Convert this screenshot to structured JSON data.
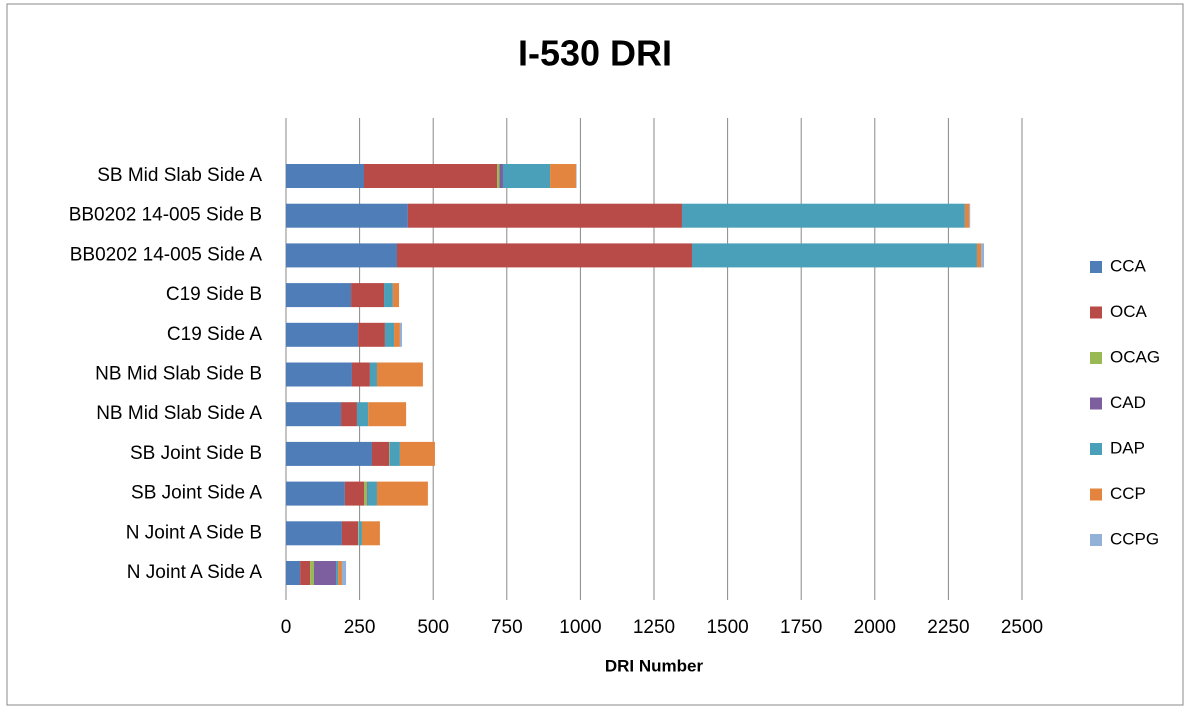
{
  "chart_data": {
    "type": "stacked-barh",
    "title": "I-530 DRI",
    "x_label": "DRI Number",
    "categories": [
      "SB Mid Slab Side A",
      "BB0202 14-005 Side B",
      "BB0202 14-005 Side A",
      "C19 Side B",
      "C19 Side A",
      "NB Mid Slab Side B",
      "NB Mid Slab Side A",
      "SB Joint Side B",
      "SB Joint Side A",
      "N Joint A Side B",
      "N Joint A Side A"
    ],
    "series": [
      {
        "name": "CCA",
        "color": "#4f7db8",
        "values": [
          265,
          414,
          377,
          221,
          245,
          224,
          187,
          292,
          200,
          190,
          48
        ]
      },
      {
        "name": "OCA",
        "color": "#b84a47",
        "values": [
          452,
          931,
          1002,
          112,
          91,
          61,
          54,
          58,
          65,
          55,
          34
        ]
      },
      {
        "name": "OCAG",
        "color": "#98b954",
        "values": [
          8,
          0,
          0,
          0,
          0,
          0,
          0,
          2,
          10,
          2,
          13
        ]
      },
      {
        "name": "CAD",
        "color": "#7d5fa0",
        "values": [
          12,
          0,
          0,
          0,
          0,
          0,
          0,
          0,
          2,
          0,
          75
        ]
      },
      {
        "name": "DAP",
        "color": "#4aa0b8",
        "values": [
          160,
          961,
          968,
          30,
          31,
          24,
          38,
          35,
          32,
          11,
          7
        ]
      },
      {
        "name": "CCP",
        "color": "#e3853f",
        "values": [
          88,
          15,
          14,
          21,
          20,
          156,
          129,
          119,
          173,
          61,
          13
        ]
      },
      {
        "name": "CCPG",
        "color": "#93b0d6",
        "values": [
          2,
          3,
          10,
          0,
          7,
          0,
          0,
          0,
          0,
          0,
          14
        ]
      }
    ],
    "xlim": [
      0,
      2500
    ],
    "xticks": [
      0,
      250,
      500,
      750,
      1000,
      1250,
      1500,
      1750,
      2000,
      2250,
      2500
    ],
    "grid": true,
    "legend": "right"
  }
}
